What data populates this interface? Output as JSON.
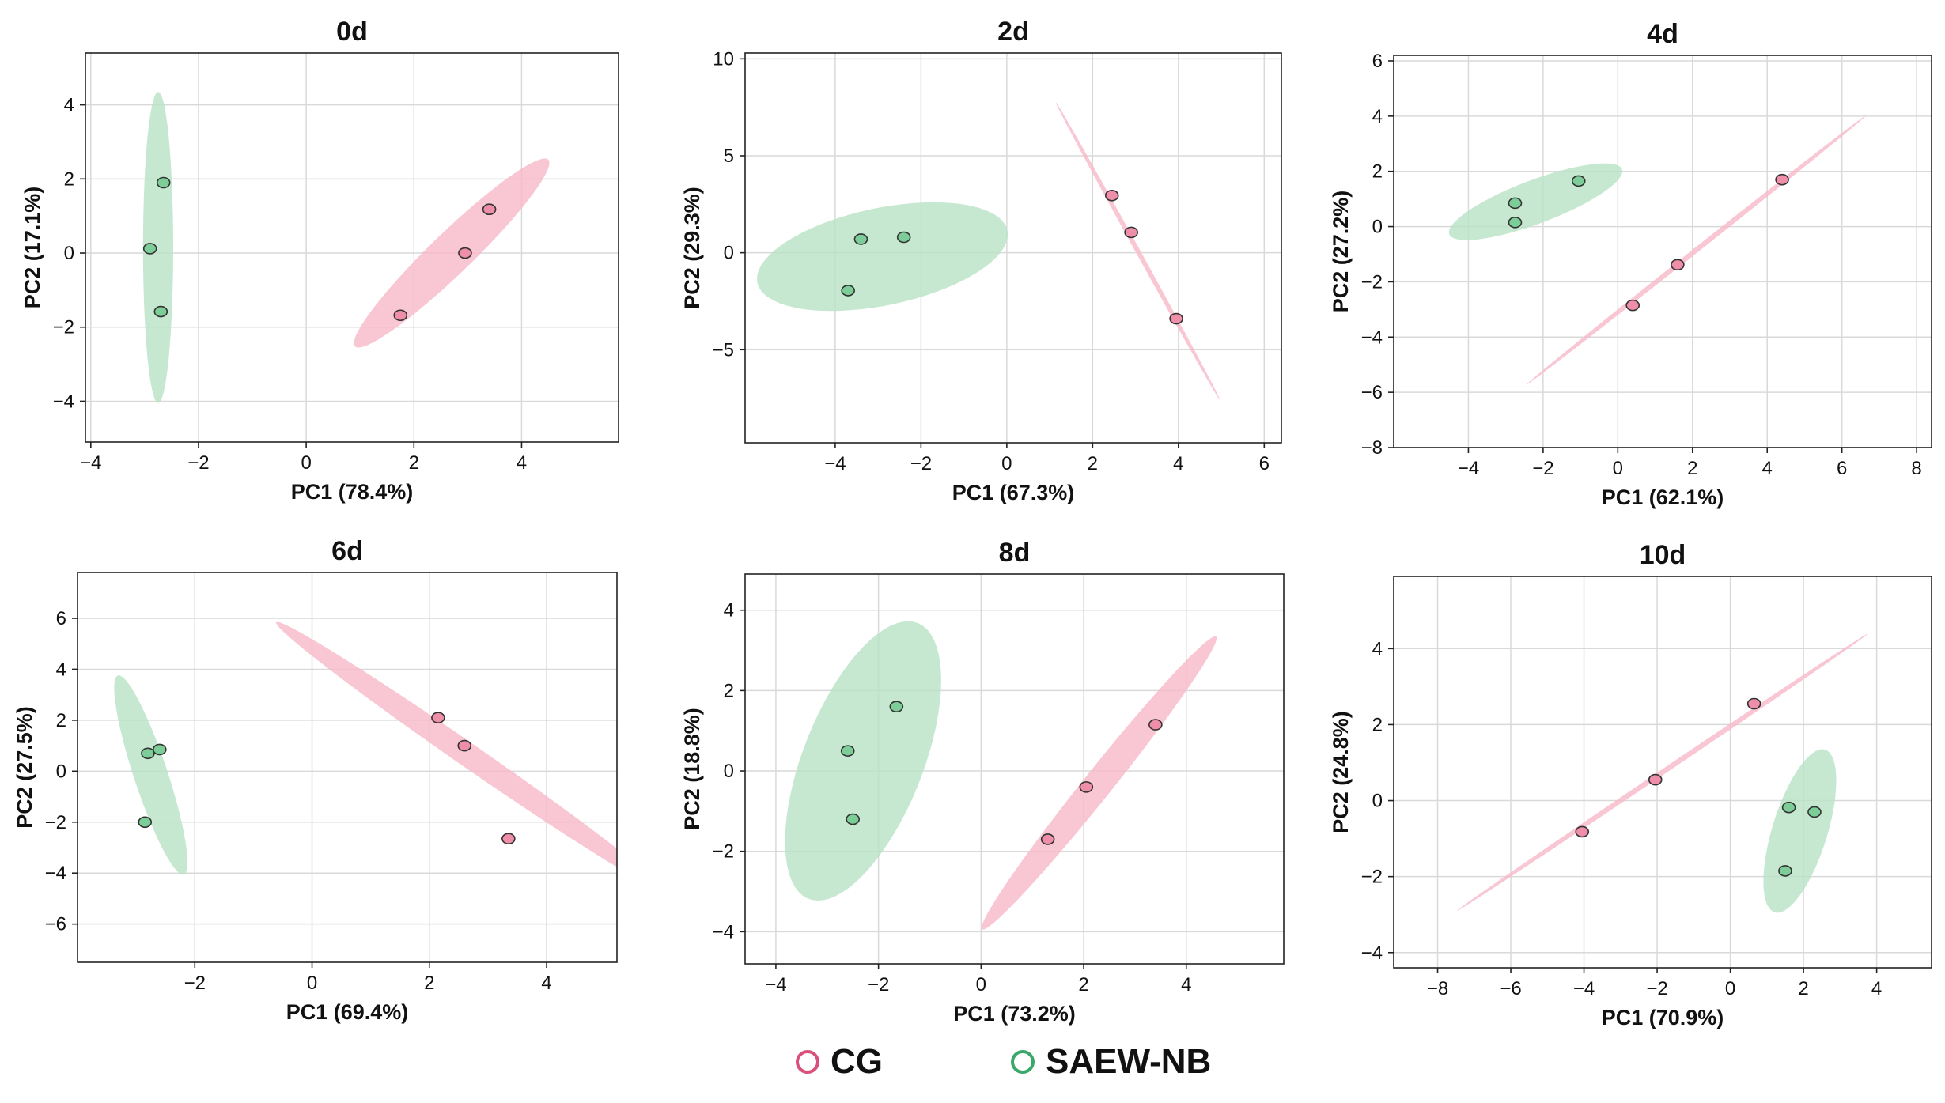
{
  "chart_data": [
    {
      "type": "scatter",
      "title": "0d",
      "xlabel": "PC1 (78.4%)",
      "ylabel": "PC2 (17.1%)",
      "xlim": [
        -4.1,
        5.8
      ],
      "ylim": [
        -5.1,
        5.4
      ],
      "xticks": [
        -4,
        -2,
        0,
        2,
        4
      ],
      "yticks": [
        -4,
        -2,
        0,
        2,
        4
      ],
      "xtick_labels": [
        "−4",
        "−2",
        "0",
        "2",
        "4"
      ],
      "ytick_labels": [
        "−4",
        "−2",
        "0",
        "2",
        "4"
      ],
      "series": [
        {
          "name": "CG",
          "points": [
            [
              1.75,
              -1.68
            ],
            [
              2.95,
              0.0
            ],
            [
              3.4,
              1.18
            ]
          ],
          "ellipse": {
            "cx": 2.7,
            "cy": 0.0,
            "rx": 3.1,
            "ry": 0.45,
            "angle": 55
          }
        },
        {
          "name": "SAEW-NB",
          "points": [
            [
              -2.65,
              1.9
            ],
            [
              -2.9,
              0.12
            ],
            [
              -2.7,
              -1.58
            ]
          ],
          "ellipse": {
            "cx": -2.75,
            "cy": 0.15,
            "rx": 0.28,
            "ry": 4.2,
            "angle": 0
          }
        }
      ]
    },
    {
      "type": "scatter",
      "title": "2d",
      "xlabel": "PC1 (67.3%)",
      "ylabel": "PC2 (29.3%)",
      "xlim": [
        -6.1,
        6.4
      ],
      "ylim": [
        -9.8,
        10.3
      ],
      "xticks": [
        -4,
        -2,
        0,
        2,
        4,
        6
      ],
      "yticks": [
        -5,
        0,
        5,
        10
      ],
      "xtick_labels": [
        "−4",
        "−2",
        "0",
        "2",
        "4",
        "6"
      ],
      "ytick_labels": [
        "−5",
        "0",
        "5",
        "10"
      ],
      "series": [
        {
          "name": "CG",
          "points": [
            [
              2.45,
              2.95
            ],
            [
              2.9,
              1.05
            ],
            [
              3.95,
              -3.4
            ]
          ],
          "ellipse": {
            "cx": 3.05,
            "cy": 0.1,
            "rx": 7.9,
            "ry": 0.06,
            "angle": -76
          }
        },
        {
          "name": "SAEW-NB",
          "points": [
            [
              -3.4,
              0.7
            ],
            [
              -2.4,
              0.8
            ],
            [
              -3.7,
              -1.95
            ]
          ],
          "ellipse": {
            "cx": -2.9,
            "cy": -0.2,
            "rx": 3.4,
            "ry": 2.2,
            "angle": 42
          }
        }
      ]
    },
    {
      "type": "scatter",
      "title": "4d",
      "xlabel": "PC1 (62.1%)",
      "ylabel": "PC2 (27.2%)",
      "xlim": [
        -6.0,
        8.4
      ],
      "ylim": [
        -8.0,
        6.2
      ],
      "xticks": [
        -4,
        -2,
        0,
        2,
        4,
        6,
        8
      ],
      "yticks": [
        -8,
        -6,
        -4,
        -2,
        0,
        2,
        4,
        6
      ],
      "xtick_labels": [
        "−4",
        "−2",
        "0",
        "2",
        "4",
        "6",
        "8"
      ],
      "ytick_labels": [
        "−8",
        "−6",
        "−4",
        "−2",
        "0",
        "2",
        "4",
        "6"
      ],
      "series": [
        {
          "name": "CG",
          "points": [
            [
              0.4,
              -2.85
            ],
            [
              1.6,
              -1.38
            ],
            [
              4.4,
              1.7
            ]
          ],
          "ellipse": {
            "cx": 2.1,
            "cy": -0.85,
            "rx": 6.65,
            "ry": 0.08,
            "angle": 47
          }
        },
        {
          "name": "SAEW-NB",
          "points": [
            [
              -2.75,
              0.85
            ],
            [
              -2.75,
              0.15
            ],
            [
              -1.05,
              1.65
            ]
          ],
          "ellipse": {
            "cx": -2.2,
            "cy": 0.9,
            "rx": 2.6,
            "ry": 0.75,
            "angle": 28
          }
        }
      ]
    },
    {
      "type": "scatter",
      "title": "6d",
      "xlabel": "PC1 (69.4%)",
      "ylabel": "PC2 (27.5%)",
      "xlim": [
        -4.0,
        5.2
      ],
      "ylim": [
        -7.5,
        7.8
      ],
      "xticks": [
        -2,
        0,
        2,
        4
      ],
      "yticks": [
        -6,
        -4,
        -2,
        0,
        2,
        4,
        6
      ],
      "xtick_labels": [
        "−2",
        "0",
        "2",
        "4"
      ],
      "ytick_labels": [
        "−6",
        "−4",
        "−2",
        "0",
        "2",
        "4",
        "6"
      ],
      "series": [
        {
          "name": "CG",
          "points": [
            [
              2.15,
              2.1
            ],
            [
              2.6,
              1.0
            ],
            [
              3.35,
              -2.65
            ]
          ],
          "ellipse": {
            "cx": 2.68,
            "cy": 0.6,
            "rx": 6.2,
            "ry": 0.3,
            "angle": -58
          }
        },
        {
          "name": "SAEW-NB",
          "points": [
            [
              -2.8,
              0.7
            ],
            [
              -2.6,
              0.85
            ],
            [
              -2.85,
              -2.0
            ]
          ],
          "ellipse": {
            "cx": -2.75,
            "cy": -0.15,
            "rx": 3.95,
            "ry": 0.3,
            "angle": -82
          }
        }
      ]
    },
    {
      "type": "scatter",
      "title": "8d",
      "xlabel": "PC1 (73.2%)",
      "ylabel": "PC2 (18.8%)",
      "xlim": [
        -4.6,
        5.9
      ],
      "ylim": [
        -4.8,
        4.9
      ],
      "xticks": [
        -4,
        -2,
        0,
        2,
        4
      ],
      "yticks": [
        -4,
        -2,
        0,
        2,
        4
      ],
      "xtick_labels": [
        "−4",
        "−2",
        "0",
        "2",
        "4"
      ],
      "ytick_labels": [
        "−4",
        "−2",
        "0",
        "2",
        "4"
      ],
      "series": [
        {
          "name": "CG",
          "points": [
            [
              1.3,
              -1.7
            ],
            [
              2.05,
              -0.4
            ],
            [
              3.4,
              1.15
            ]
          ],
          "ellipse": {
            "cx": 2.3,
            "cy": -0.3,
            "rx": 4.3,
            "ry": 0.3,
            "angle": 58
          }
        },
        {
          "name": "SAEW-NB",
          "points": [
            [
              -2.6,
              0.5
            ],
            [
              -1.65,
              1.6
            ],
            [
              -2.5,
              -1.2
            ]
          ],
          "ellipse": {
            "cx": -2.3,
            "cy": 0.25,
            "rx": 3.6,
            "ry": 1.2,
            "angle": 74
          }
        }
      ]
    },
    {
      "type": "scatter",
      "title": "10d",
      "xlabel": "PC1 (70.9%)",
      "ylabel": "PC2 (24.8%)",
      "xlim": [
        -9.2,
        5.5
      ],
      "ylim": [
        -4.4,
        5.9
      ],
      "xticks": [
        -8,
        -6,
        -4,
        -2,
        0,
        2,
        4
      ],
      "yticks": [
        -4,
        -2,
        0,
        2,
        4
      ],
      "xtick_labels": [
        "−8",
        "−6",
        "−4",
        "−2",
        "0",
        "2",
        "4"
      ],
      "ytick_labels": [
        "−4",
        "−2",
        "0",
        "2",
        "4"
      ],
      "series": [
        {
          "name": "CG",
          "points": [
            [
              -4.05,
              -0.82
            ],
            [
              -2.05,
              0.55
            ],
            [
              0.65,
              2.55
            ]
          ],
          "ellipse": {
            "cx": -1.85,
            "cy": 0.75,
            "rx": 6.7,
            "ry": 0.07,
            "angle": 33
          }
        },
        {
          "name": "SAEW-NB",
          "points": [
            [
              1.6,
              -0.18
            ],
            [
              2.3,
              -0.3
            ],
            [
              1.5,
              -1.85
            ]
          ],
          "ellipse": {
            "cx": 1.9,
            "cy": -0.8,
            "rx": 2.25,
            "ry": 0.75,
            "angle": 72
          }
        }
      ]
    }
  ],
  "legend": {
    "items": [
      {
        "label": "CG",
        "color": "#d9507a"
      },
      {
        "label": "SAEW-NB",
        "color": "#3aa86a"
      }
    ]
  },
  "colors": {
    "CG": {
      "fill": "#f7b8c8",
      "marker": "#ee8ea9"
    },
    "SAEW-NB": {
      "fill": "#b9e2c4",
      "marker": "#7ccd98"
    }
  }
}
